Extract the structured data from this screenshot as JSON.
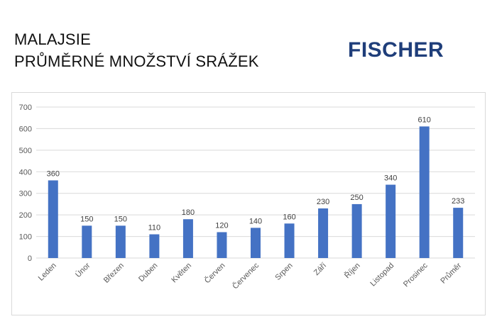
{
  "header": {
    "title_line1": "MALAJSIE",
    "title_line2": "PRŮMĚRNÉ MNOŽSTVÍ SRÁŽEK",
    "logo_text": "FISCHER"
  },
  "colors": {
    "bar": "#4472c4",
    "grid": "#d9d9d9",
    "axis_text": "#595959",
    "logo": "#1f3e7a"
  },
  "chart_data": {
    "type": "bar",
    "title": "",
    "xlabel": "",
    "ylabel": "",
    "categories": [
      "Leden",
      "Únor",
      "Březen",
      "Duben",
      "Květen",
      "Červen",
      "Červenec",
      "Srpen",
      "Září",
      "Říjen",
      "Listopad",
      "Prosinec",
      "Průměr"
    ],
    "values": [
      360,
      150,
      150,
      110,
      180,
      120,
      140,
      160,
      230,
      250,
      340,
      610,
      233
    ],
    "data_labels": [
      "360",
      "150",
      "150",
      "110",
      "180",
      "120",
      "140",
      "160",
      "230",
      "250",
      "340",
      "610",
      "233"
    ],
    "ylim": [
      0,
      700
    ],
    "yticks": [
      0,
      100,
      200,
      300,
      400,
      500,
      600,
      700
    ],
    "grid": true,
    "legend": "none"
  }
}
